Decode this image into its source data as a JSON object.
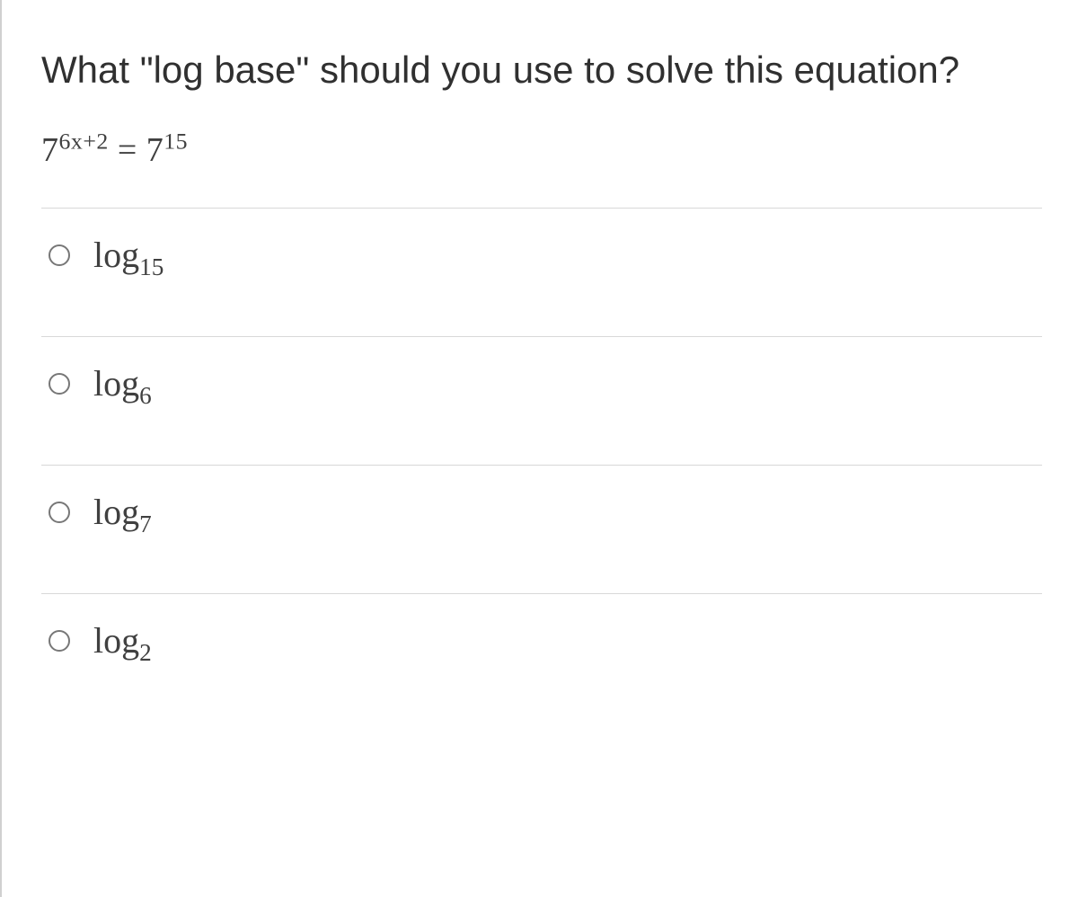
{
  "question": {
    "text": "What \"log base\" should you use to solve this equation?",
    "equation": {
      "base_left": "7",
      "exp_left": "6x+2",
      "eq": " = ",
      "base_right": "7",
      "exp_right": "15"
    }
  },
  "options": [
    {
      "prefix": "log",
      "sub": "15"
    },
    {
      "prefix": "log",
      "sub": "6"
    },
    {
      "prefix": "log",
      "sub": "7"
    },
    {
      "prefix": "log",
      "sub": "2"
    }
  ],
  "colors": {
    "text": "#303030",
    "math": "#404040",
    "divider": "#d8d8d8",
    "frame_border": "#d0d0d0",
    "radio_border": "#777777",
    "background": "#ffffff"
  }
}
